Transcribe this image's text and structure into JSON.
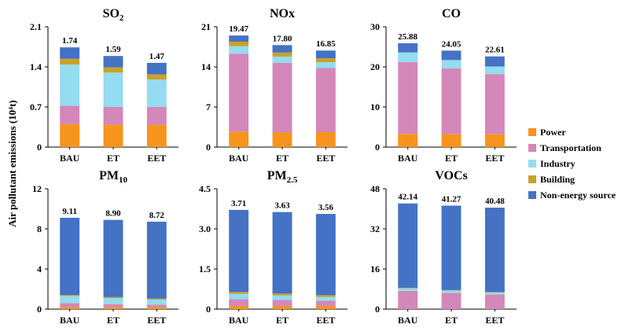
{
  "ylabel": "Air pollutant emissions (10⁴t)",
  "legend": [
    {
      "name": "Power",
      "color": "#F7941D"
    },
    {
      "name": "Transportation",
      "color": "#D487B9"
    },
    {
      "name": "Industry",
      "color": "#94DCF0"
    },
    {
      "name": "Building",
      "color": "#C9A227"
    },
    {
      "name": "Non-energy source",
      "color": "#4472C4"
    }
  ],
  "chart_data": [
    {
      "type": "bar",
      "stacked": true,
      "title": "SO",
      "title_sub": "2",
      "title_sub_mode": "sub",
      "categories": [
        "BAU",
        "ET",
        "EET"
      ],
      "ylim": [
        0,
        2.1
      ],
      "yticks": [
        "0",
        "0.7",
        "1.4",
        "2.1"
      ],
      "totals": [
        "1.74",
        "1.59",
        "1.47"
      ],
      "series": [
        {
          "name": "Power",
          "values": [
            0.4,
            0.39,
            0.39
          ]
        },
        {
          "name": "Transportation",
          "values": [
            0.32,
            0.31,
            0.31
          ]
        },
        {
          "name": "Industry",
          "values": [
            0.72,
            0.6,
            0.48
          ]
        },
        {
          "name": "Building",
          "values": [
            0.1,
            0.09,
            0.09
          ]
        },
        {
          "name": "Non-energy source",
          "values": [
            0.2,
            0.2,
            0.2
          ]
        }
      ]
    },
    {
      "type": "bar",
      "stacked": true,
      "title": "NOx",
      "title_sub": "",
      "title_sub_mode": "sub",
      "categories": [
        "BAU",
        "ET",
        "EET"
      ],
      "ylim": [
        0,
        21
      ],
      "yticks": [
        "0",
        "7",
        "14",
        "21"
      ],
      "totals": [
        "19.47",
        "17.80",
        "16.85"
      ],
      "series": [
        {
          "name": "Power",
          "values": [
            2.7,
            2.6,
            2.6
          ]
        },
        {
          "name": "Transportation",
          "values": [
            13.6,
            12.1,
            11.2
          ]
        },
        {
          "name": "Industry",
          "values": [
            1.3,
            1.1,
            1.0
          ]
        },
        {
          "name": "Building",
          "values": [
            0.8,
            0.7,
            0.7
          ]
        },
        {
          "name": "Non-energy source",
          "values": [
            1.07,
            1.3,
            1.35
          ]
        }
      ]
    },
    {
      "type": "bar",
      "stacked": true,
      "title": "CO",
      "title_sub": "",
      "title_sub_mode": "sub",
      "categories": [
        "BAU",
        "ET",
        "EET"
      ],
      "ylim": [
        0,
        30
      ],
      "yticks": [
        "0",
        "10",
        "20",
        "30"
      ],
      "totals": [
        "25.88",
        "24.05",
        "22.61"
      ],
      "series": [
        {
          "name": "Power",
          "values": [
            3.3,
            3.2,
            3.2
          ]
        },
        {
          "name": "Transportation",
          "values": [
            17.9,
            16.4,
            15.0
          ]
        },
        {
          "name": "Industry",
          "values": [
            2.4,
            2.1,
            1.9
          ]
        },
        {
          "name": "Building",
          "values": [
            0.0,
            0.0,
            0.0
          ]
        },
        {
          "name": "Non-energy source",
          "values": [
            2.28,
            2.35,
            2.51
          ]
        }
      ]
    },
    {
      "type": "bar",
      "stacked": true,
      "title": "PM",
      "title_sub": "10",
      "title_sub_mode": "sub",
      "categories": [
        "BAU",
        "ET",
        "EET"
      ],
      "ylim": [
        0,
        12
      ],
      "yticks": [
        "0",
        "4",
        "8",
        "12"
      ],
      "totals": [
        "9.11",
        "8.90",
        "8.72"
      ],
      "series": [
        {
          "name": "Power",
          "values": [
            0.2,
            0.2,
            0.2
          ]
        },
        {
          "name": "Transportation",
          "values": [
            0.4,
            0.3,
            0.25
          ]
        },
        {
          "name": "Industry",
          "values": [
            0.7,
            0.6,
            0.5
          ]
        },
        {
          "name": "Building",
          "values": [
            0.1,
            0.1,
            0.1
          ]
        },
        {
          "name": "Non-energy source",
          "values": [
            7.71,
            7.7,
            7.67
          ]
        }
      ]
    },
    {
      "type": "bar",
      "stacked": true,
      "title": "PM",
      "title_sub": "2.5",
      "title_sub_mode": "sub",
      "categories": [
        "BAU",
        "ET",
        "EET"
      ],
      "ylim": [
        0,
        4.5
      ],
      "yticks": [
        "0",
        "1.5",
        "3.0",
        "4.5"
      ],
      "totals": [
        "3.71",
        "3.63",
        "3.56"
      ],
      "series": [
        {
          "name": "Power",
          "values": [
            0.12,
            0.12,
            0.12
          ]
        },
        {
          "name": "Transportation",
          "values": [
            0.25,
            0.22,
            0.19
          ]
        },
        {
          "name": "Industry",
          "values": [
            0.2,
            0.17,
            0.14
          ]
        },
        {
          "name": "Building",
          "values": [
            0.07,
            0.07,
            0.07
          ]
        },
        {
          "name": "Non-energy source",
          "values": [
            3.07,
            3.05,
            3.04
          ]
        }
      ]
    },
    {
      "type": "bar",
      "stacked": true,
      "title": "VOCs",
      "title_sub": "",
      "title_sub_mode": "sub",
      "categories": [
        "BAU",
        "ET",
        "EET"
      ],
      "ylim": [
        0,
        48
      ],
      "yticks": [
        "0",
        "16",
        "32",
        "48"
      ],
      "totals": [
        "42.14",
        "41.27",
        "40.48"
      ],
      "series": [
        {
          "name": "Power",
          "values": [
            0.0,
            0.0,
            0.0
          ]
        },
        {
          "name": "Transportation",
          "values": [
            7.3,
            6.5,
            5.8
          ]
        },
        {
          "name": "Industry",
          "values": [
            1.0,
            0.9,
            0.8
          ]
        },
        {
          "name": "Building",
          "values": [
            0.2,
            0.2,
            0.2
          ]
        },
        {
          "name": "Non-energy source",
          "values": [
            33.64,
            33.67,
            33.68
          ]
        }
      ]
    }
  ]
}
